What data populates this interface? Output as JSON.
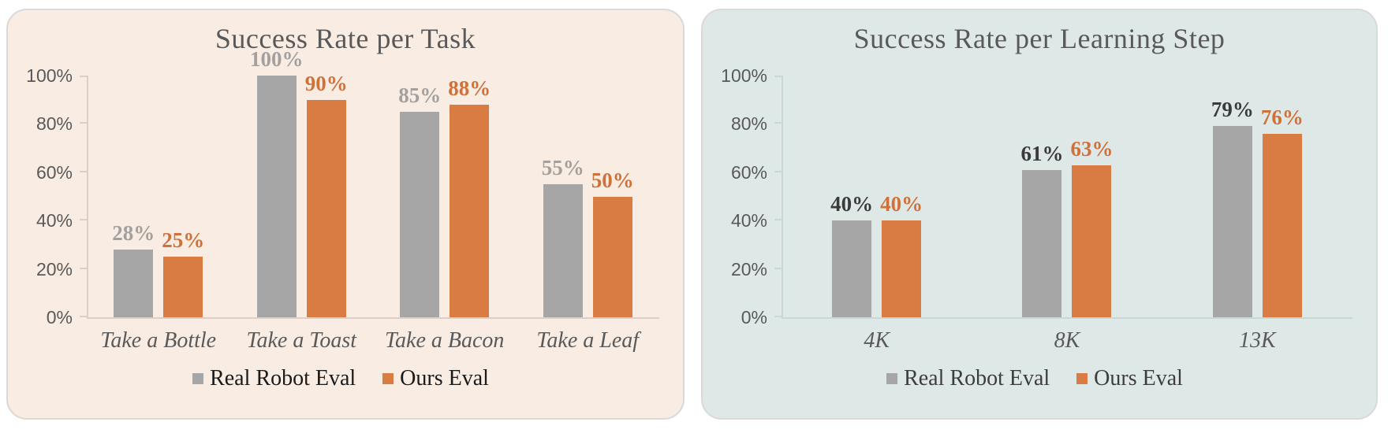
{
  "page": {
    "background_color": "#ffffff"
  },
  "chart_data": [
    {
      "type": "bar",
      "title": "Success Rate per Task",
      "categories": [
        "Take a Bottle",
        "Take a Toast",
        "Take a Bacon",
        "Take a Leaf"
      ],
      "series": [
        {
          "name": "Real Robot Eval",
          "values": [
            28,
            100,
            85,
            55
          ],
          "color": "#a6a6a6",
          "data_label_color": "#a3a09e"
        },
        {
          "name": "Ours Eval",
          "values": [
            25,
            90,
            88,
            50
          ],
          "color": "#d87c44",
          "data_label_color": "#d0713a"
        }
      ],
      "xlabel": "",
      "ylabel": "",
      "ylim": [
        0,
        100
      ],
      "ytick_labels": [
        "0%",
        "20%",
        "40%",
        "60%",
        "80%",
        "100%"
      ],
      "data_labels": "percent",
      "grid": false,
      "legend_position": "bottom",
      "panel_background": "#f9ece3",
      "panel_border_color": "#d9d9d9",
      "axis_color": "#decfc6",
      "title_color": "#595959",
      "tick_label_color": "#595959",
      "category_label_color": "#595959",
      "legend_text_color": "#1a1a1a"
    },
    {
      "type": "bar",
      "title": "Success Rate per Learning Step",
      "categories": [
        "4K",
        "8K",
        "13K"
      ],
      "series": [
        {
          "name": "Real Robot Eval",
          "values": [
            40,
            61,
            79
          ],
          "color": "#a6a6a6",
          "data_label_color": "#3b3b3b"
        },
        {
          "name": "Ours Eval",
          "values": [
            40,
            63,
            76
          ],
          "color": "#d87c44",
          "data_label_color": "#d0713a"
        }
      ],
      "xlabel": "",
      "ylabel": "",
      "ylim": [
        0,
        100
      ],
      "ytick_labels": [
        "0%",
        "20%",
        "40%",
        "60%",
        "80%",
        "100%"
      ],
      "data_labels": "percent",
      "grid": false,
      "legend_position": "bottom",
      "panel_background": "#dee9e7",
      "panel_border_color": "#d9d9d9",
      "axis_color": "#c7d8d5",
      "title_color": "#595959",
      "tick_label_color": "#595959",
      "category_label_color": "#595959",
      "legend_text_color": "#3d3d3d"
    }
  ]
}
